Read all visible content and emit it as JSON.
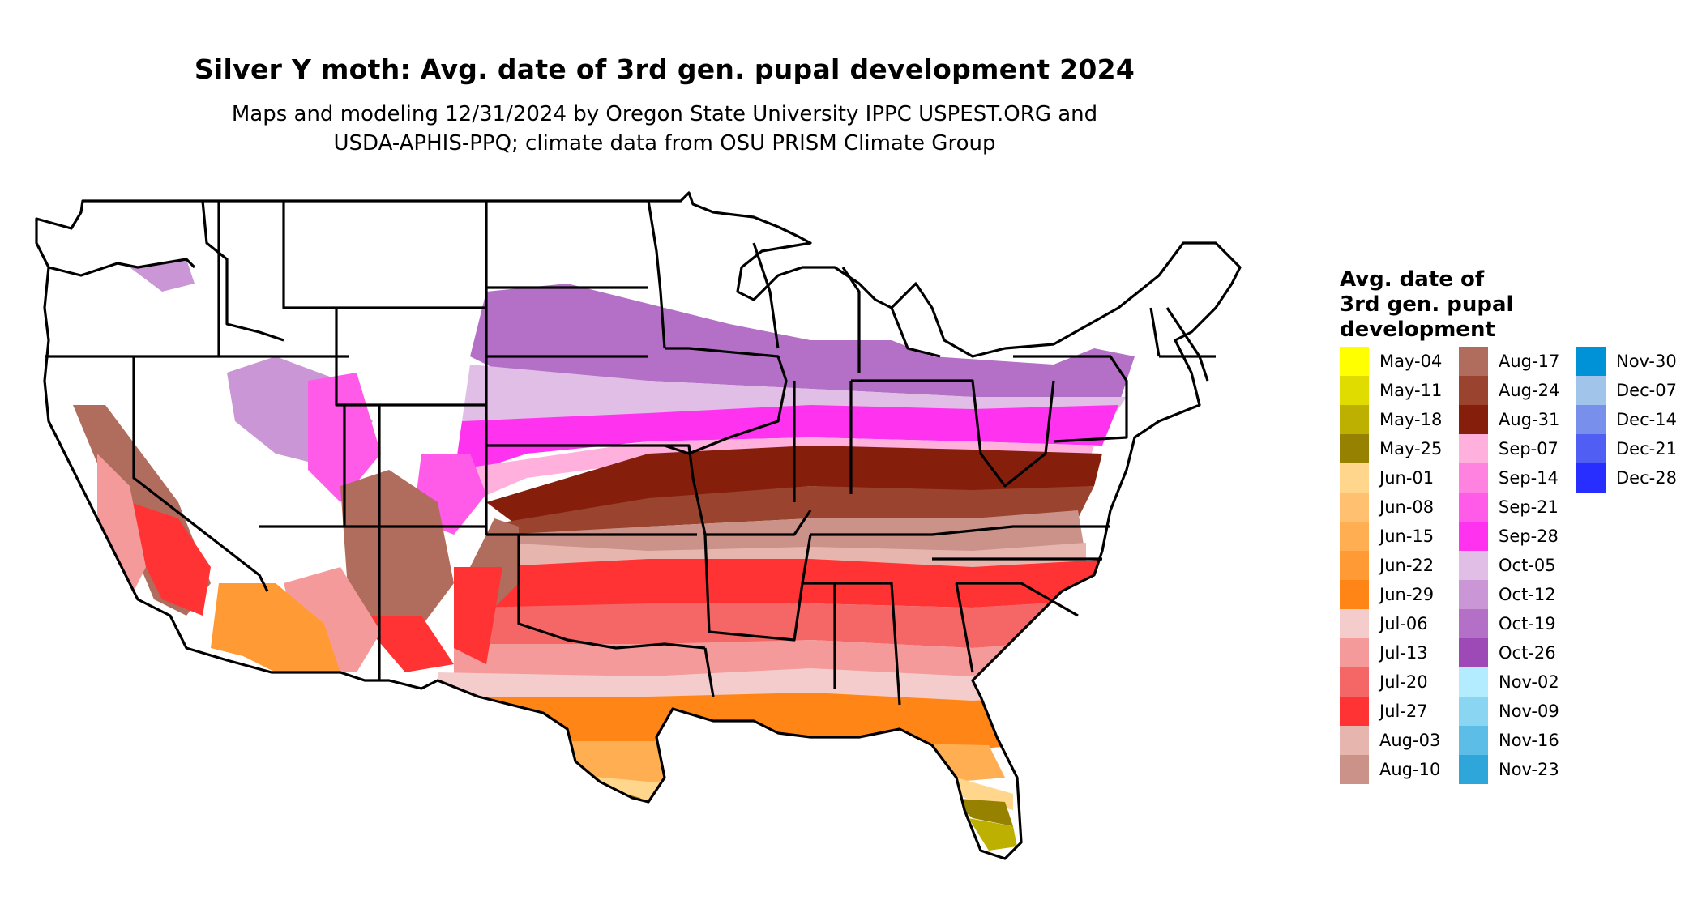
{
  "title": "Silver Y moth: Avg. date of 3rd gen. pupal development 2024",
  "subtitle_lines": [
    "Maps and modeling 12/31/2024 by Oregon State University IPPC USPEST.ORG and",
    "USDA-APHIS-PPQ; climate data from OSU PRISM Climate Group"
  ],
  "legend": {
    "title": "Avg. date of\n3rd gen. pupal\ndevelopment",
    "columns": [
      [
        {
          "label": "May-04",
          "color": "#FFFF00"
        },
        {
          "label": "May-11",
          "color": "#E0DC00"
        },
        {
          "label": "May-18",
          "color": "#BEB000"
        },
        {
          "label": "May-25",
          "color": "#968200"
        },
        {
          "label": "Jun-01",
          "color": "#FFD68C"
        },
        {
          "label": "Jun-08",
          "color": "#FFC070"
        },
        {
          "label": "Jun-15",
          "color": "#FFAE52"
        },
        {
          "label": "Jun-22",
          "color": "#FF9A34"
        },
        {
          "label": "Jun-29",
          "color": "#FF8616"
        },
        {
          "label": "Jul-06",
          "color": "#F5CCCC"
        },
        {
          "label": "Jul-13",
          "color": "#F59A9A"
        },
        {
          "label": "Jul-20",
          "color": "#F56666"
        },
        {
          "label": "Jul-27",
          "color": "#FF3333"
        },
        {
          "label": "Aug-03",
          "color": "#E6B6AE"
        },
        {
          "label": "Aug-10",
          "color": "#CA9288"
        }
      ],
      [
        {
          "label": "Aug-17",
          "color": "#B06C5C"
        },
        {
          "label": "Aug-24",
          "color": "#9A4430"
        },
        {
          "label": "Aug-31",
          "color": "#861E0C"
        },
        {
          "label": "Sep-07",
          "color": "#FFB0DC"
        },
        {
          "label": "Sep-14",
          "color": "#FF82E0"
        },
        {
          "label": "Sep-21",
          "color": "#FF5AE8"
        },
        {
          "label": "Sep-28",
          "color": "#FF32F0"
        },
        {
          "label": "Oct-05",
          "color": "#E0BEE6"
        },
        {
          "label": "Oct-12",
          "color": "#CA96D6"
        },
        {
          "label": "Oct-19",
          "color": "#B470C6"
        },
        {
          "label": "Oct-26",
          "color": "#9E4AB6"
        },
        {
          "label": "Nov-02",
          "color": "#B4ECFF"
        },
        {
          "label": "Nov-09",
          "color": "#8AD6F2"
        },
        {
          "label": "Nov-16",
          "color": "#5CBEE6"
        },
        {
          "label": "Nov-23",
          "color": "#2EA6DA"
        }
      ],
      [
        {
          "label": "Nov-30",
          "color": "#0092D6"
        },
        {
          "label": "Dec-07",
          "color": "#A0C4EA"
        },
        {
          "label": "Dec-14",
          "color": "#7890EC"
        },
        {
          "label": "Dec-21",
          "color": "#505EF4"
        },
        {
          "label": "Dec-28",
          "color": "#282EFF"
        }
      ]
    ]
  },
  "map_regions": [
    {
      "name": "gulf-coast-south-fl-tip",
      "date": "May-04"
    },
    {
      "name": "south-fl-and-tx-tip",
      "date": "May-18"
    },
    {
      "name": "gulf-coast",
      "date": "Jun-22"
    },
    {
      "name": "deep-south",
      "date": "Jul-13"
    },
    {
      "name": "mid-south",
      "date": "Jul-27"
    },
    {
      "name": "ohio-valley",
      "date": "Aug-24"
    },
    {
      "name": "central-plains-north",
      "date": "Sep-21"
    },
    {
      "name": "northern-plains",
      "date": "Oct-19"
    },
    {
      "name": "desert-southwest",
      "date": "Jun-22"
    },
    {
      "name": "california-valley",
      "date": "Jul-27"
    }
  ]
}
